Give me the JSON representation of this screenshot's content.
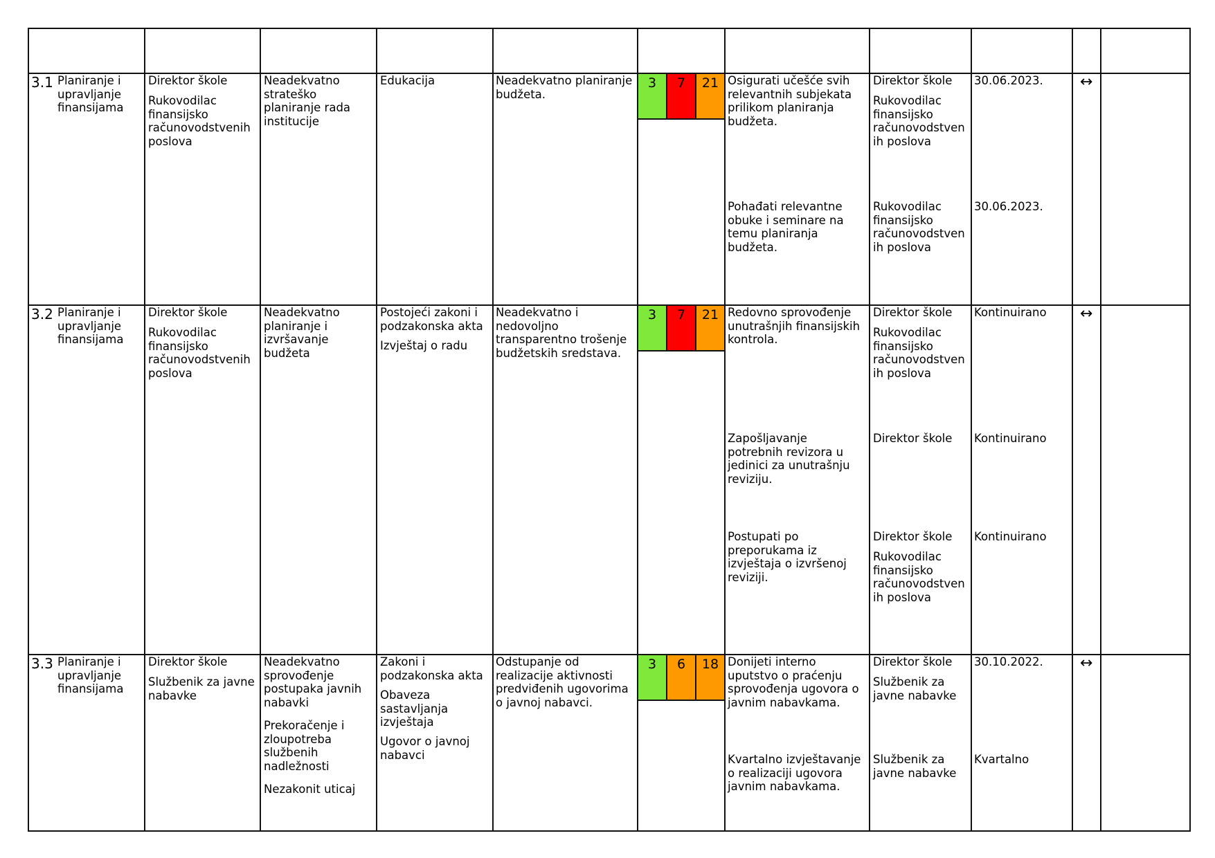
{
  "colors": {
    "green": "#7ee83b",
    "red": "#ff0000",
    "orange": "#ff9900",
    "border": "#111111"
  },
  "rows": [
    {
      "id": "3.1",
      "area": "Planiranje i\nupravljanje\nfinansijama",
      "responsible_1": "Direktor škole",
      "responsible_2": "Rukovodilac\nfinansijsko\nračunovodstvenih\nposlova",
      "risk": "Neadekvatno\nstrateško\nplaniranje rada\ninstitucije",
      "sources": [
        "Edukacija"
      ],
      "description": "Neadekvatno planiranje\nbudžeta.",
      "scores": [
        {
          "value": "3",
          "color": "green"
        },
        {
          "value": "7",
          "color": "red"
        },
        {
          "value": "21",
          "color": "orange"
        }
      ],
      "trend": "↔",
      "measures": [
        {
          "text": "Osigurati učešće svih\nrelevantnih subjekata\nprilikom planiranja\nbudžeta.",
          "owners": [
            "Direktor škole",
            "Rukovodilac\nfinansijsko\nračunovodstven\nih poslova"
          ],
          "deadline": "30.06.2023."
        },
        {
          "text": "Pohađati relevantne\nobuke i seminare na\ntemu planiranja\nbudžeta.",
          "owners": [
            "Rukovodilac\nfinansijsko\nračunovodstven\nih poslova"
          ],
          "deadline": "30.06.2023."
        }
      ]
    },
    {
      "id": "3.2",
      "area": "Planiranje i\nupravljanje\nfinansijama",
      "responsible_1": "Direktor škole",
      "responsible_2": "Rukovodilac\nfinansijsko\nračunovodstvenih\nposlova",
      "risk": "Neadekvatno\nplaniranje i\nizvršavanje\nbudžeta",
      "sources": [
        "Postojeći zakoni i\npodzakonska akta",
        "Izvještaj o radu"
      ],
      "description": "Neadekvatno i\nnedovoljno\ntransparentno trošenje\nbudžetskih sredstava.",
      "scores": [
        {
          "value": "3",
          "color": "green"
        },
        {
          "value": "7",
          "color": "red"
        },
        {
          "value": "21",
          "color": "orange"
        }
      ],
      "trend": "↔",
      "measures": [
        {
          "text": "Redovno sprovođenje\nunutrašnjih finansijskih\nkontrola.",
          "owners": [
            "Direktor škole",
            "Rukovodilac\nfinansijsko\nračunovodstven\nih poslova"
          ],
          "deadline": "Kontinuirano"
        },
        {
          "text": "Zapošljavanje\npotrebnih revizora u\njedinici za unutrašnju\nreviziju.",
          "owners": [
            "Direktor škole"
          ],
          "deadline": "Kontinuirano"
        },
        {
          "text": "Postupati po\npreporukama iz\nizvještaja o izvršenoj\nreviziji.",
          "owners": [
            "Direktor škole",
            "Rukovodilac\nfinansijsko\nračunovodstven\nih poslova"
          ],
          "deadline": "Kontinuirano"
        }
      ]
    },
    {
      "id": "3.3",
      "area": "Planiranje i\nupravljanje\nfinansijama",
      "responsible_1": "Direktor škole",
      "responsible_2": "Službenik za javne\nnabavke",
      "risk_parts": [
        "Neadekvatno\nsprovođenje\npostupaka javnih\nnabavki",
        "Prekoračenje i\nzloupotreba\nslužbenih\nnadležnosti",
        "Nezakonit uticaj"
      ],
      "sources": [
        "Zakoni i\npodzakonska akta",
        "Obaveza\nsastavljanja\nizvještaja",
        "Ugovor o javnoj\nnabavci"
      ],
      "description": "Odstupanje od\nrealizacije aktivnosti\npredviđenih ugovorima\no javnoj nabavci.",
      "scores": [
        {
          "value": "3",
          "color": "green"
        },
        {
          "value": "6",
          "color": "orange"
        },
        {
          "value": "18",
          "color": "orange"
        }
      ],
      "trend": "↔",
      "measures": [
        {
          "text": "Donijeti interno\nuputstvo o praćenju\nsprovođenja ugovora o\njavnim nabavkama.",
          "owners": [
            "Direktor škole",
            "Službenik za\njavne nabavke"
          ],
          "deadline": "30.10.2022."
        },
        {
          "text": "Kvartalno izvještavanje\no realizaciji ugovora\njavnim nabavkama.",
          "owners": [
            "Službenik za\njavne nabavke"
          ],
          "deadline": "Kvartalno"
        }
      ]
    }
  ]
}
